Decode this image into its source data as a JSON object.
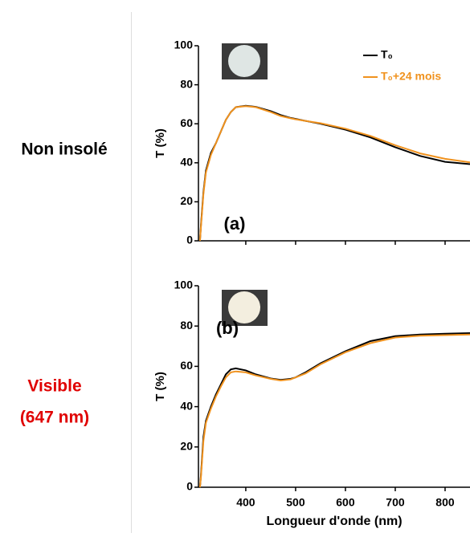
{
  "row_labels": [
    "Non insolé",
    "Visible",
    "(647 nm)"
  ],
  "chart_data": [
    {
      "type": "line",
      "ylabel": "T (%)",
      "annotation": "(a)",
      "legend": "upper right",
      "x": [
        308,
        310,
        315,
        320,
        330,
        340,
        350,
        360,
        370,
        380,
        400,
        420,
        450,
        470,
        490,
        500,
        520,
        550,
        600,
        650,
        700,
        750,
        800,
        850
      ],
      "series": [
        {
          "name": "T₀",
          "color": "#000000",
          "values": [
            0,
            8,
            25,
            36,
            45,
            50,
            56,
            62,
            66,
            68.5,
            69.2,
            68.7,
            66.5,
            64.5,
            63,
            62.5,
            61.5,
            60,
            57,
            53,
            48,
            43.5,
            40.5,
            39.3
          ]
        },
        {
          "name": "T₀+24 mois",
          "color": "#f0921e",
          "values": [
            0,
            7,
            24,
            35,
            44,
            50,
            56,
            62,
            66,
            68.5,
            69,
            68.5,
            66,
            64,
            62.8,
            62.3,
            61.5,
            60.3,
            57.5,
            53.8,
            49,
            44.8,
            42,
            40.2
          ]
        }
      ],
      "xlim": [
        305,
        850
      ],
      "xticks": [
        400,
        500,
        600,
        700,
        800
      ],
      "ylim": [
        0,
        100
      ],
      "yticks": [
        0,
        20,
        40,
        60,
        80,
        100
      ]
    },
    {
      "type": "line",
      "ylabel": "T (%)",
      "xlabel": "Longueur d'onde (nm)",
      "annotation": "(b)",
      "x": [
        308,
        310,
        315,
        320,
        330,
        340,
        350,
        360,
        370,
        380,
        400,
        420,
        450,
        470,
        490,
        500,
        520,
        550,
        600,
        650,
        700,
        750,
        800,
        850
      ],
      "series": [
        {
          "color": "#000000",
          "values": [
            0,
            6,
            25,
            33,
            40,
            46,
            51,
            56,
            58.5,
            59,
            58,
            56,
            54,
            53.3,
            53.8,
            54.5,
            57,
            61.5,
            67.5,
            72.5,
            75,
            75.8,
            76.2,
            76.5
          ]
        },
        {
          "color": "#f0921e",
          "values": [
            0,
            5,
            23,
            32,
            39,
            45,
            50,
            54.5,
            57,
            57.5,
            57,
            55.5,
            53.8,
            53,
            53.5,
            54.5,
            56.5,
            61,
            67,
            71.5,
            74.3,
            75.2,
            75.5,
            75.8
          ]
        }
      ],
      "xlim": [
        305,
        850
      ],
      "xticks": [
        400,
        500,
        600,
        700,
        800
      ],
      "ylim": [
        0,
        100
      ],
      "yticks": [
        0,
        20,
        40,
        60,
        80,
        100
      ]
    }
  ]
}
